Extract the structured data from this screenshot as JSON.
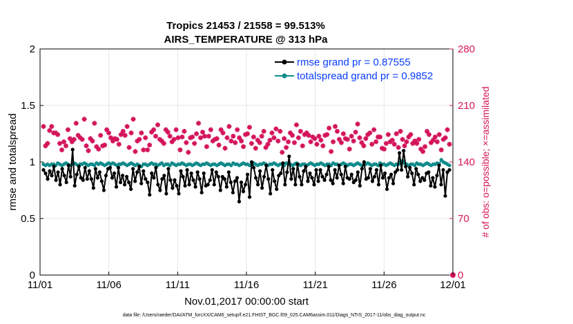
{
  "chart_data": {
    "type": "line",
    "title": [
      "Tropics 21453 / 21558 = 99.513%",
      "AIRS_TEMPERATURE @ 313 hPa"
    ],
    "xlabel": "Nov.01,2017 00:00:00 start",
    "ylabel": "rmse and totalspread",
    "y2label": "# of obs: o=possible; ×=assimilated",
    "x_ticks": [
      "11/01",
      "11/06",
      "11/11",
      "11/16",
      "11/21",
      "11/26",
      "12/01"
    ],
    "x_range_days": [
      0,
      30
    ],
    "ylim": [
      0,
      2
    ],
    "y_ticks": [
      "0",
      "0.5",
      "1",
      "1.5",
      "2"
    ],
    "y2lim": [
      0,
      280
    ],
    "y2_ticks": [
      "0",
      "70",
      "140",
      "210",
      "280"
    ],
    "grid": true,
    "legend_position": "top-right",
    "footer": "data file: /Users/raeder/DAI/ATM_forcXX/CAM6_setup/f.e21.FHIST_BGC.f09_025.CAM6assim.011/Diags_NTrS_2017-11/obs_diag_output.nc",
    "colors": {
      "rmse": "#000000",
      "spread": "#0f8a8a",
      "obs": "#d4145a",
      "legend_text": "#0a3cff"
    },
    "series": [
      {
        "name": "rmse grand pr = 0.87555",
        "values": [
          0.93,
          0.9,
          0.85,
          0.92,
          0.88,
          0.96,
          0.84,
          0.91,
          0.8,
          0.94,
          0.88,
          0.82,
          0.97,
          0.87,
          1.11,
          0.79,
          0.89,
          0.96,
          0.86,
          0.84,
          0.95,
          0.85,
          0.92,
          0.85,
          0.77,
          0.94,
          0.86,
          0.91,
          0.83,
          0.75,
          0.88,
          0.94,
          0.95,
          0.86,
          0.9,
          0.78,
          0.95,
          0.82,
          0.88,
          0.8,
          0.87,
          0.82,
          0.76,
          0.94,
          0.83,
          0.91,
          0.96,
          0.81,
          0.92,
          0.85,
          0.82,
          0.71,
          0.9,
          0.86,
          0.95,
          0.8,
          0.75,
          0.85,
          0.88,
          0.72,
          0.94,
          0.84,
          0.77,
          0.84,
          0.79,
          0.72,
          0.92,
          0.87,
          0.79,
          0.93,
          0.8,
          0.9,
          0.84,
          0.78,
          0.91,
          0.85,
          0.73,
          0.9,
          0.79,
          0.8,
          0.84,
          0.93,
          0.8,
          0.91,
          0.87,
          0.75,
          0.87,
          0.85,
          0.78,
          0.91,
          0.82,
          0.73,
          0.83,
          0.86,
          0.65,
          0.82,
          0.74,
          0.8,
          0.89,
          0.69,
          1.0,
          0.95,
          0.86,
          0.8,
          0.92,
          0.77,
          0.87,
          0.97,
          0.85,
          0.72,
          0.93,
          0.83,
          0.76,
          0.88,
          0.9,
          0.99,
          0.8,
          0.91,
          1.05,
          0.85,
          0.94,
          0.8,
          0.98,
          0.87,
          0.8,
          0.92,
          0.96,
          0.83,
          0.9,
          0.86,
          0.8,
          0.93,
          0.83,
          0.93,
          0.87,
          0.84,
          0.89,
          0.96,
          0.84,
          0.81,
          0.93,
          0.86,
          0.97,
          0.89,
          0.81,
          0.96,
          0.86,
          0.85,
          0.89,
          0.82,
          0.84,
          0.91,
          0.79,
          0.94,
          1.0,
          0.85,
          0.86,
          0.94,
          0.83,
          0.87,
          0.93,
          0.8,
          0.97,
          0.86,
          0.9,
          0.76,
          0.86,
          0.89,
          0.81,
          0.91,
          0.93,
          1.08,
          0.93,
          1.1,
          0.96,
          0.87,
          0.95,
          0.9,
          0.8,
          0.94,
          0.89,
          0.83,
          0.86,
          0.84,
          0.9,
          0.91,
          0.79,
          0.86,
          0.78,
          0.88,
          0.97,
          0.8,
          0.93,
          0.7,
          0.91,
          0.93
        ],
        "days_span": [
          0.25,
          29.75
        ]
      },
      {
        "name": "totalspread grand pr = 0.9852",
        "values": [
          0.98,
          0.97,
          0.98,
          0.97,
          0.98,
          0.98,
          0.97,
          0.99,
          0.98,
          0.97,
          0.98,
          0.99,
          0.98,
          0.97,
          0.98,
          0.99,
          0.98,
          0.97,
          0.98,
          0.98,
          0.99,
          0.98,
          0.97,
          0.98,
          0.98,
          0.97,
          0.99,
          0.98,
          0.99,
          0.98,
          0.97,
          0.98,
          0.99,
          0.98,
          0.99,
          0.98,
          0.97,
          0.98,
          0.98,
          0.99,
          0.98,
          0.97,
          0.98,
          0.99,
          0.98,
          0.97,
          0.98,
          0.97,
          0.96,
          0.98,
          0.98,
          0.97,
          0.98,
          0.99,
          0.98,
          0.98,
          0.97,
          0.98,
          0.99,
          0.97,
          0.98,
          0.98,
          0.97,
          0.99,
          0.98,
          0.97,
          0.98,
          0.98,
          0.99,
          0.98,
          0.97,
          0.98,
          0.98,
          0.97,
          0.98,
          0.99,
          0.98,
          0.97,
          0.98,
          0.98,
          0.99,
          0.98,
          0.97,
          0.98,
          0.98,
          0.97,
          0.98,
          0.99,
          0.98,
          0.97,
          0.98,
          0.98,
          0.97,
          0.99,
          0.98,
          0.98,
          0.97,
          0.98,
          0.99,
          0.98,
          0.98,
          0.97,
          0.98,
          0.99,
          0.98,
          0.97,
          0.98,
          0.98,
          0.99,
          0.98,
          0.97,
          0.98,
          0.98,
          0.99,
          0.98,
          0.97,
          0.98,
          0.98,
          0.97,
          0.99,
          0.98,
          0.98,
          0.97,
          0.98,
          0.99,
          0.98,
          0.97,
          0.98,
          0.98,
          0.97,
          0.98,
          0.99,
          0.98,
          0.97,
          0.98,
          0.98,
          0.99,
          0.98,
          0.97,
          0.98,
          0.98,
          0.97,
          0.99,
          0.98,
          0.98,
          0.97,
          0.98,
          0.99,
          0.98,
          0.97,
          0.98,
          0.98,
          0.97,
          0.98,
          0.99,
          0.98,
          0.97,
          0.98,
          0.98,
          0.99,
          0.98,
          0.97,
          0.98,
          0.98,
          0.97,
          0.99,
          0.98,
          0.98,
          0.97,
          0.98,
          0.99,
          0.98,
          0.97,
          0.98,
          0.98,
          1.0,
          1.01,
          0.99,
          0.98,
          0.97,
          0.98,
          0.98,
          0.97,
          0.99,
          0.98,
          0.98,
          0.97,
          0.98,
          0.99,
          0.98,
          0.97,
          0.98,
          0.98,
          0.99,
          0.98,
          1.02,
          1.0,
          0.99,
          0.98,
          0.97
        ],
        "days_span": [
          0.25,
          29.75
        ]
      },
      {
        "name": "# of obs assimilated",
        "axis": "right",
        "values": [
          184,
          160,
          163,
          179,
          184,
          176,
          176,
          174,
          163,
          155,
          165,
          160,
          180,
          169,
          165,
          168,
          188,
          173,
          170,
          168,
          193,
          160,
          154,
          169,
          166,
          188,
          159,
          156,
          173,
          160,
          161,
          180,
          176,
          170,
          166,
          169,
          168,
          162,
          174,
          178,
          173,
          184,
          158,
          176,
          193,
          153,
          166,
          168,
          176,
          155,
          170,
          155,
          161,
          177,
          180,
          172,
          186,
          168,
          166,
          163,
          180,
          177,
          172,
          165,
          168,
          180,
          170,
          155,
          171,
          178,
          164,
          152,
          170,
          171,
          163,
          175,
          188,
          170,
          177,
          172,
          159,
          172,
          180,
          166,
          168,
          169,
          161,
          180,
          176,
          157,
          170,
          184,
          166,
          172,
          164,
          180,
          170,
          166,
          159,
          174,
          175,
          183,
          163,
          171,
          157,
          167,
          164,
          172,
          178,
          158,
          162,
          167,
          176,
          170,
          181,
          166,
          178,
          152,
          169,
          158,
          165,
          176,
          173,
          164,
          186,
          170,
          178,
          160,
          174,
          176,
          173,
          165,
          171,
          169,
          162,
          172,
          167,
          160,
          173,
          174,
          182,
          153,
          165,
          184,
          178,
          168,
          164,
          175,
          169,
          168,
          156,
          172,
          166,
          177,
          187,
          170,
          164,
          160,
          169,
          174,
          176,
          162,
          180,
          165,
          171,
          171,
          157,
          156,
          163,
          174,
          165,
          167,
          162,
          175,
          158,
          178,
          168,
          160,
          165,
          171,
          174,
          163,
          166,
          163,
          168,
          156,
          153,
          159,
          178,
          174,
          164,
          167,
          171,
          165,
          174,
          155,
          168,
          170,
          180,
          162
        ],
        "days_span": [
          0.25,
          29.75
        ]
      }
    ]
  }
}
